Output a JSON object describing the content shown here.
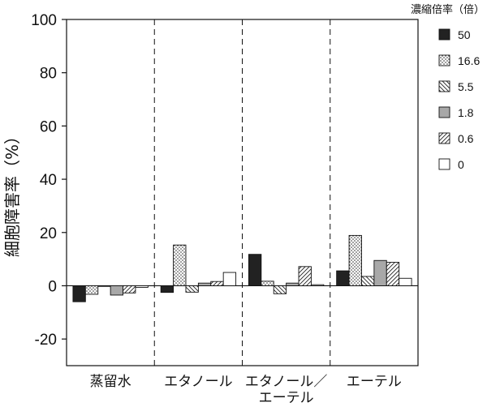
{
  "chart_data": {
    "type": "bar",
    "ylabel": "細胞障害率（%）",
    "xlabel": "",
    "ylim": [
      -30,
      100
    ],
    "yticks": [
      -20,
      0,
      20,
      40,
      60,
      80,
      100
    ],
    "ytick_labels": [
      "-20",
      "0",
      "20",
      "40",
      "60",
      "80",
      "100"
    ],
    "grid": false,
    "categories": [
      {
        "lines": [
          "蒸留水"
        ]
      },
      {
        "lines": [
          "エタノール"
        ]
      },
      {
        "lines": [
          "エタノール／",
          "エーテル"
        ]
      },
      {
        "lines": [
          "エーテル"
        ]
      }
    ],
    "legend": {
      "title": "濃縮倍率（倍）",
      "position": "right"
    },
    "series": [
      {
        "name": "50",
        "pattern": "solid-dark",
        "values": [
          -6.0,
          -2.5,
          11.8,
          5.6
        ]
      },
      {
        "name": "16.6",
        "pattern": "dots",
        "values": [
          -3.2,
          15.3,
          1.7,
          18.9
        ]
      },
      {
        "name": "5.5",
        "pattern": "backslash",
        "values": [
          0.0,
          -2.4,
          -3.0,
          3.5
        ]
      },
      {
        "name": "1.8",
        "pattern": "solid-gray",
        "values": [
          -3.5,
          1.0,
          1.0,
          9.5
        ]
      },
      {
        "name": "0.6",
        "pattern": "slash",
        "values": [
          -2.7,
          1.6,
          7.2,
          8.8
        ]
      },
      {
        "name": "0",
        "pattern": "solid-white",
        "values": [
          -0.6,
          5.0,
          0.4,
          2.8
        ]
      }
    ],
    "colors": {
      "dark": "#222222",
      "gray": "#a8a8a8",
      "white": "#ffffff",
      "stroke": "#111111"
    }
  }
}
